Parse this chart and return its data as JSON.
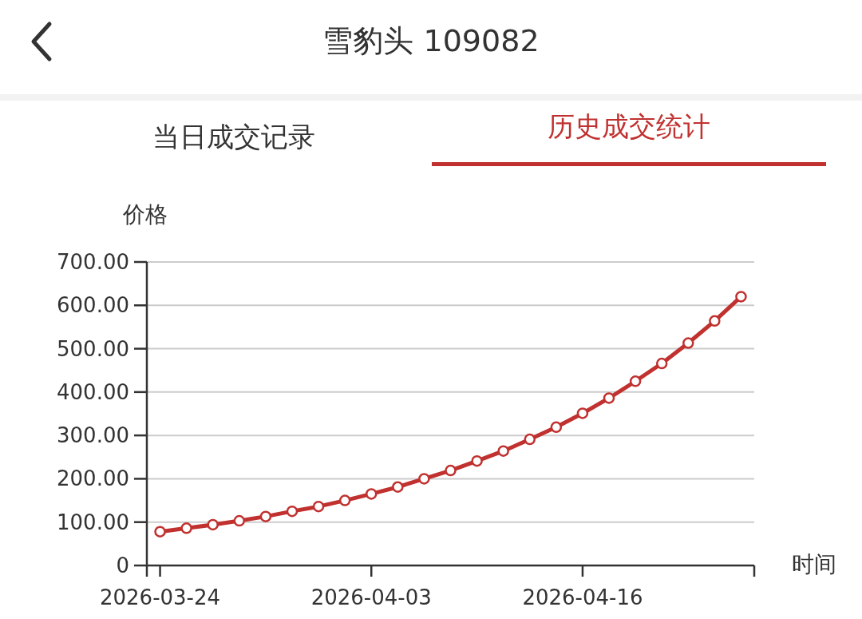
{
  "chart_data": {
    "type": "line",
    "title": "雪豹头 109082",
    "annotations": [
      "当日成交记录",
      "历史成交统计"
    ],
    "ylabel": "价格",
    "xlabel": "时间",
    "categories": [
      "2026-03-24",
      null,
      null,
      null,
      null,
      null,
      null,
      null,
      "2026-04-03",
      null,
      null,
      null,
      null,
      null,
      null,
      null,
      "2026-04-16",
      null,
      null,
      null,
      null,
      null,
      null
    ],
    "series": [
      {
        "color": "#c0312f",
        "values": [
          78,
          86,
          94,
          103,
          113,
          125,
          136,
          150,
          165,
          181,
          200,
          219,
          241,
          264,
          291,
          319,
          351,
          386,
          425,
          466,
          513,
          564,
          620
        ]
      }
    ],
    "ylim": [
      0,
      700
    ],
    "yticks": [
      0,
      {
        "value": 100,
        "label": "100.00"
      },
      {
        "value": 200,
        "label": "200.00"
      },
      {
        "value": 300,
        "label": "300.00"
      },
      {
        "value": 400,
        "label": "400.00"
      },
      {
        "value": 500,
        "label": "500.00"
      },
      {
        "value": 600,
        "label": "600.00"
      },
      {
        "value": 700,
        "label": "700.00"
      }
    ],
    "grid": "y",
    "marker": "circle"
  }
}
